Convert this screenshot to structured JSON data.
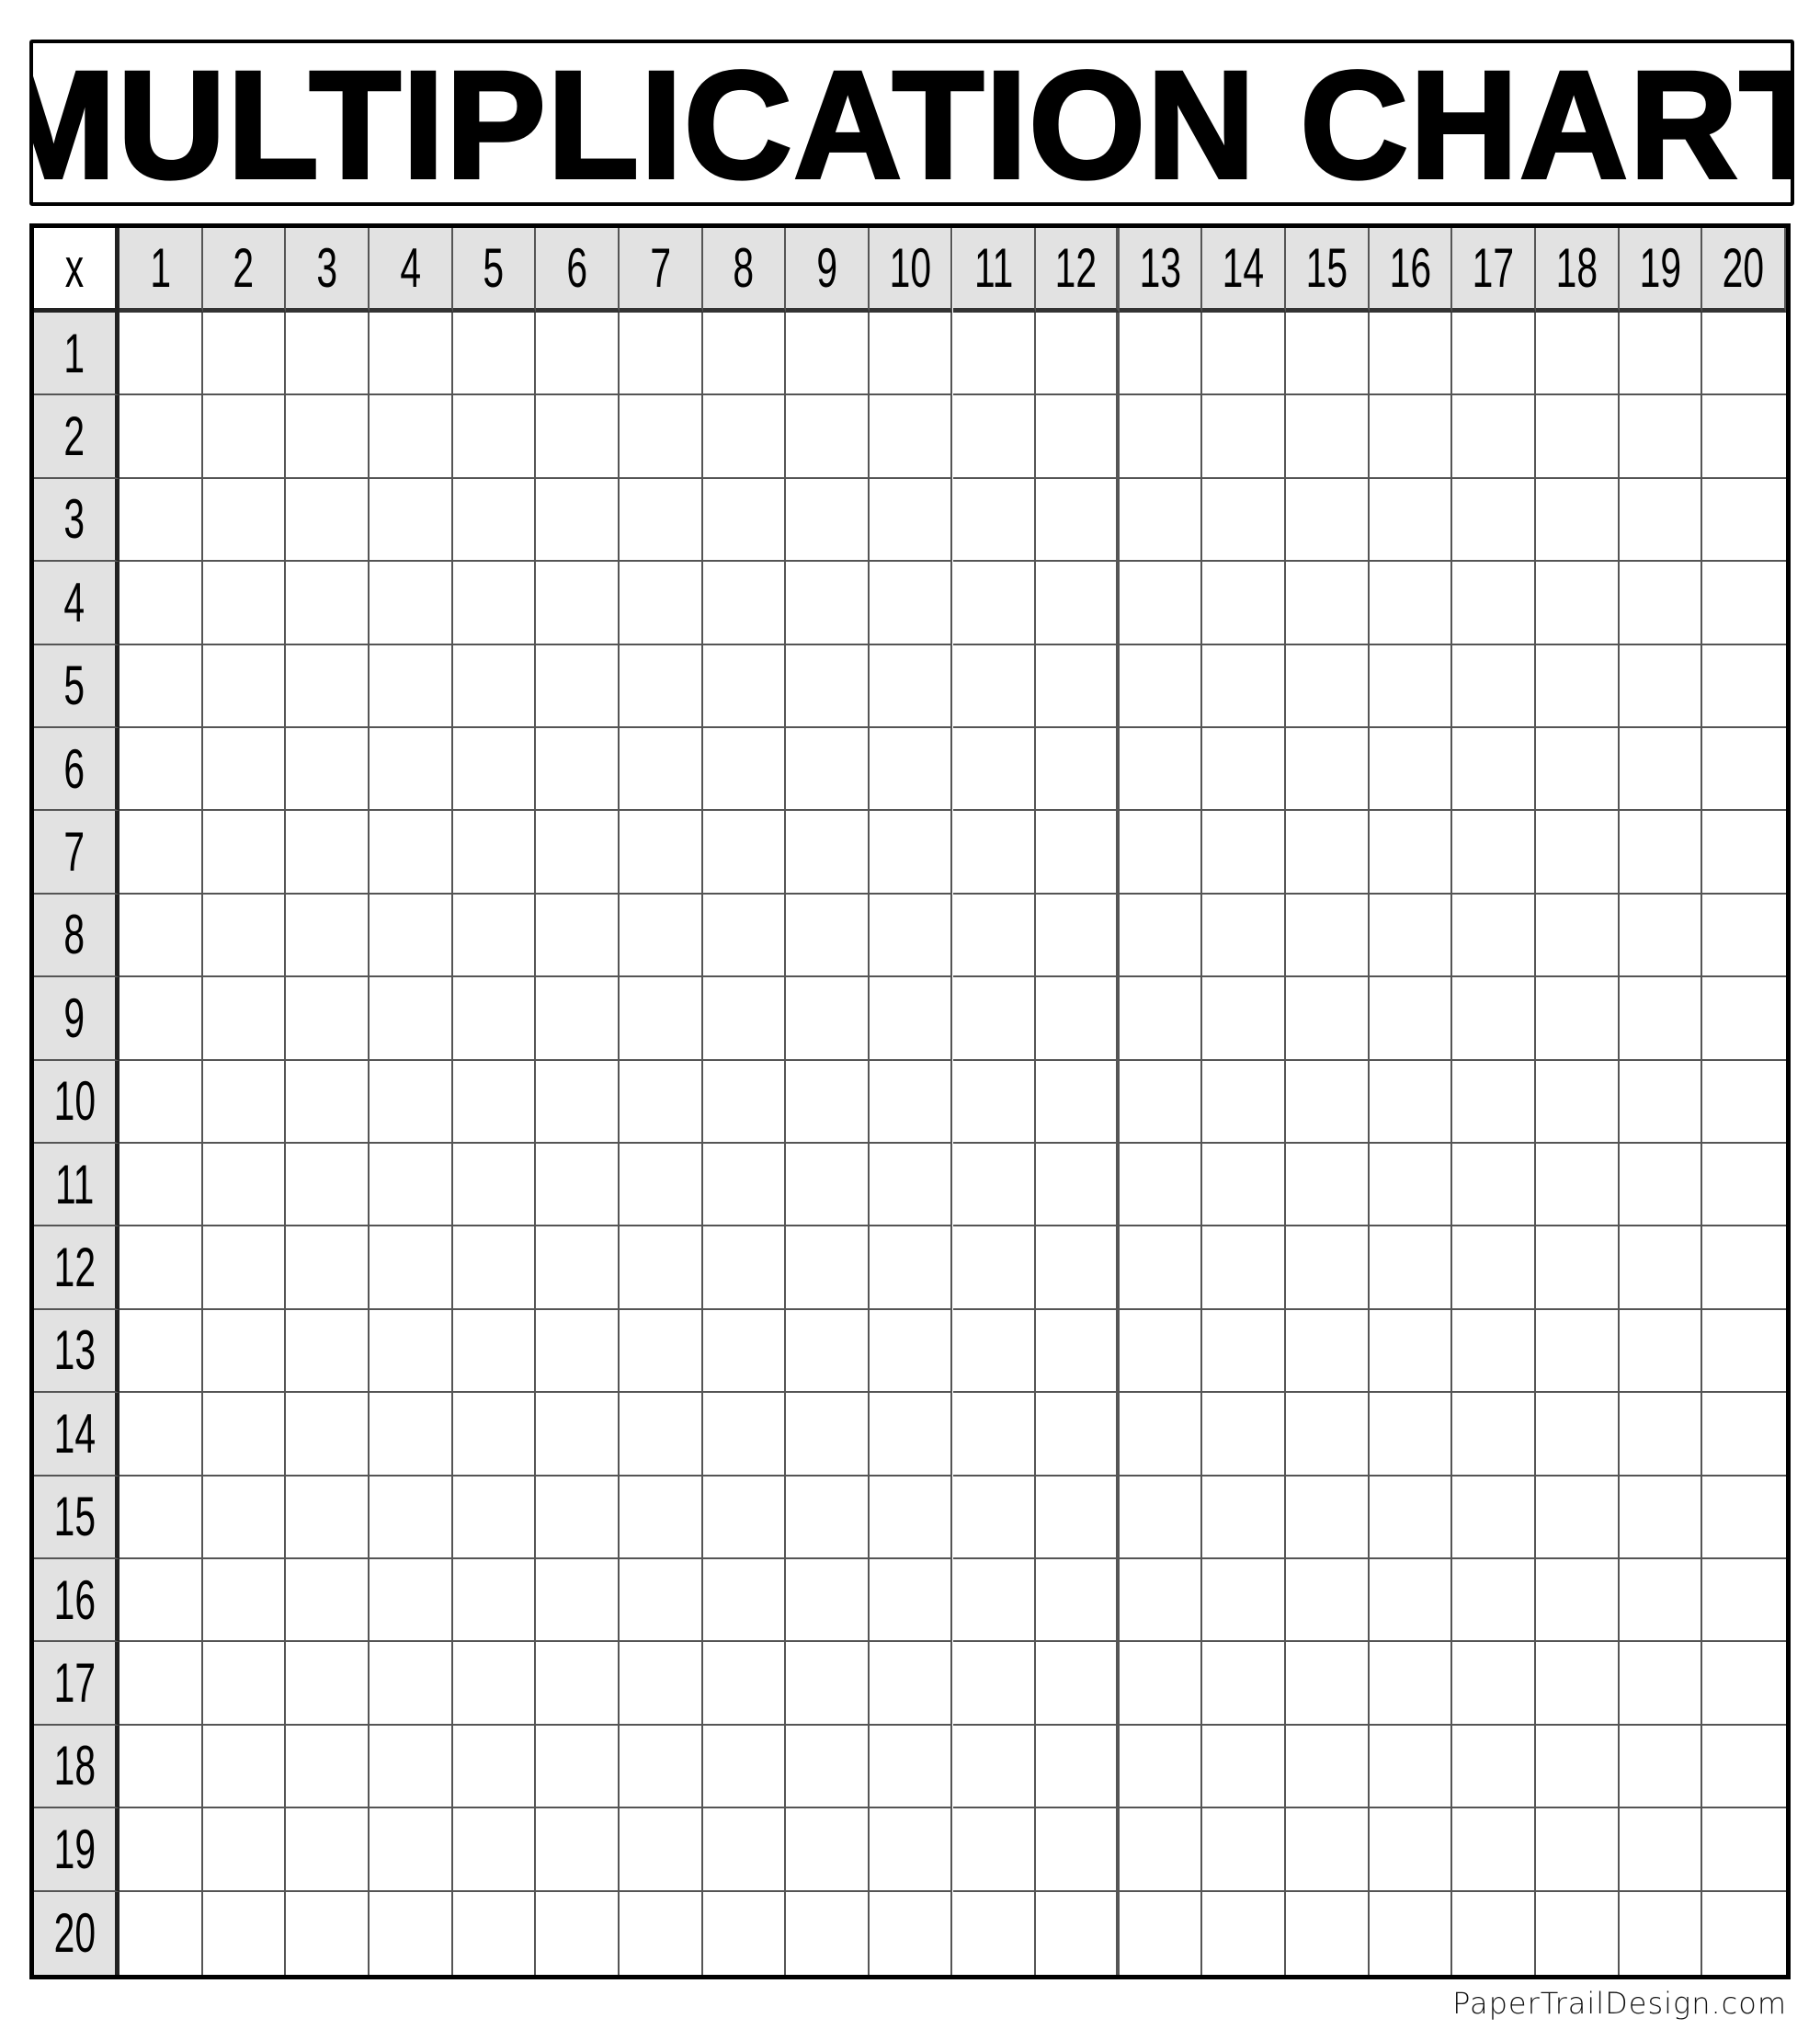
{
  "title": "MULTIPLICATION CHART",
  "corner_label": "x",
  "column_headers": [
    "1",
    "2",
    "3",
    "4",
    "5",
    "6",
    "7",
    "8",
    "9",
    "10",
    "11",
    "12",
    "13",
    "14",
    "15",
    "16",
    "17",
    "18",
    "19",
    "20"
  ],
  "row_headers": [
    "1",
    "2",
    "3",
    "4",
    "5",
    "6",
    "7",
    "8",
    "9",
    "10",
    "11",
    "12",
    "13",
    "14",
    "15",
    "16",
    "17",
    "18",
    "19",
    "20"
  ],
  "header_fill_color": "#e2e2e2",
  "footer": "PaperTrailDesign.com"
}
